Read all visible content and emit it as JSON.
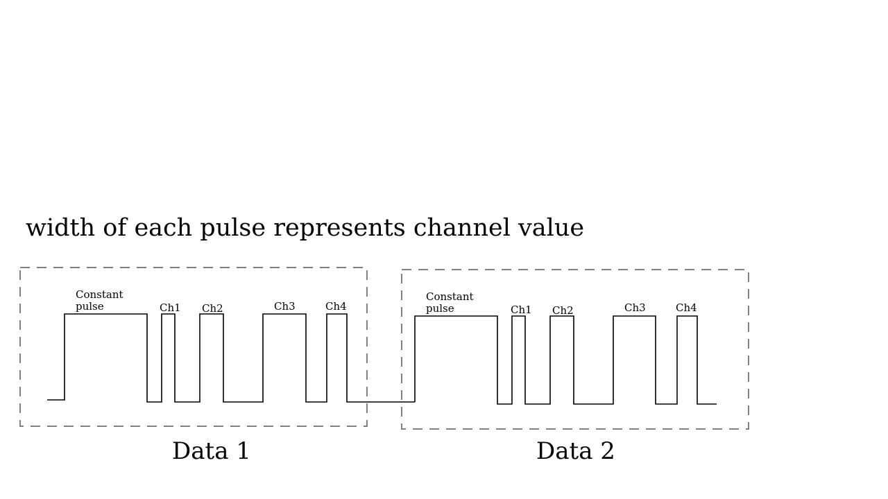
{
  "title": "width of each pulse represents channel value",
  "frames": [
    {
      "label": "Data 1",
      "constant_label_line1": "Constant",
      "constant_label_line2": "pulse",
      "channels": [
        "Ch1",
        "Ch2",
        "Ch3",
        "Ch4"
      ]
    },
    {
      "label": "Data 2",
      "constant_label_line1": "Constant",
      "constant_label_line2": "pulse",
      "channels": [
        "Ch1",
        "Ch2",
        "Ch3",
        "Ch4"
      ]
    }
  ]
}
